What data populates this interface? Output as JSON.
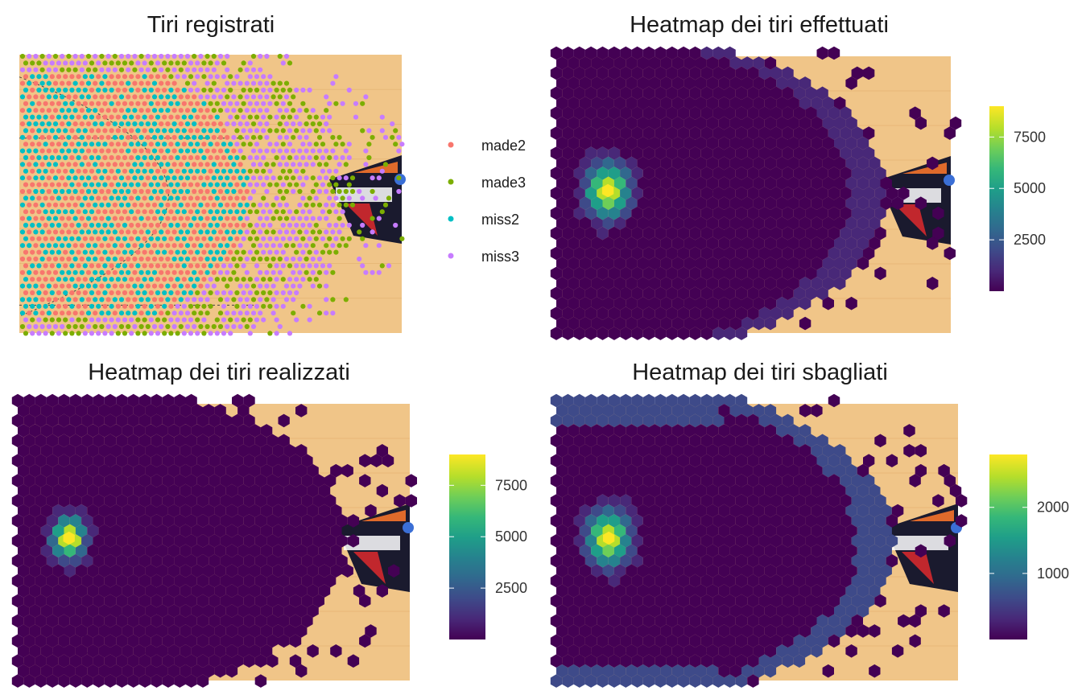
{
  "colors": {
    "made2": "#F8766D",
    "made3": "#7CAE00",
    "miss2": "#00BFC4",
    "miss3": "#C77CFF",
    "court_wood": "#f0c588",
    "viridis": [
      "#440154",
      "#482878",
      "#3e4a89",
      "#31688e",
      "#26828e",
      "#1f9e89",
      "#35b779",
      "#6ece58",
      "#b5de2b",
      "#fde725"
    ]
  },
  "icons": {
    "court": "basketball-halfcourt-background",
    "logo": "final-four-logo"
  },
  "chart_data": [
    {
      "type": "scatter",
      "title": "Tiri registrati",
      "legend": {
        "position": "right",
        "entries": [
          {
            "name": "made2",
            "color": "#F8766D"
          },
          {
            "name": "made3",
            "color": "#7CAE00"
          },
          {
            "name": "miss2",
            "color": "#00BFC4"
          },
          {
            "name": "miss3",
            "color": "#C77CFF"
          }
        ]
      },
      "grid": false,
      "axes": "hidden",
      "background": "basketball half court"
    },
    {
      "type": "heatmap",
      "title": "Heatmap dei tiri effettuati",
      "colorbar": {
        "ticks": [
          2500,
          5000,
          7500
        ],
        "min": 0,
        "max": 9000,
        "palette": "viridis"
      },
      "peak_value": 9000,
      "grid": false,
      "axes": "hidden"
    },
    {
      "type": "heatmap",
      "title": "Heatmap dei tiri realizzati",
      "colorbar": {
        "ticks": [
          2500,
          5000,
          7500
        ],
        "min": 0,
        "max": 9000,
        "palette": "viridis"
      },
      "peak_value": 9000,
      "grid": false,
      "axes": "hidden"
    },
    {
      "type": "heatmap",
      "title": "Heatmap dei tiri sbagliati",
      "colorbar": {
        "ticks": [
          1000,
          2000
        ],
        "min": 0,
        "max": 2800,
        "palette": "viridis"
      },
      "peak_value": 2800,
      "grid": false,
      "axes": "hidden"
    }
  ]
}
